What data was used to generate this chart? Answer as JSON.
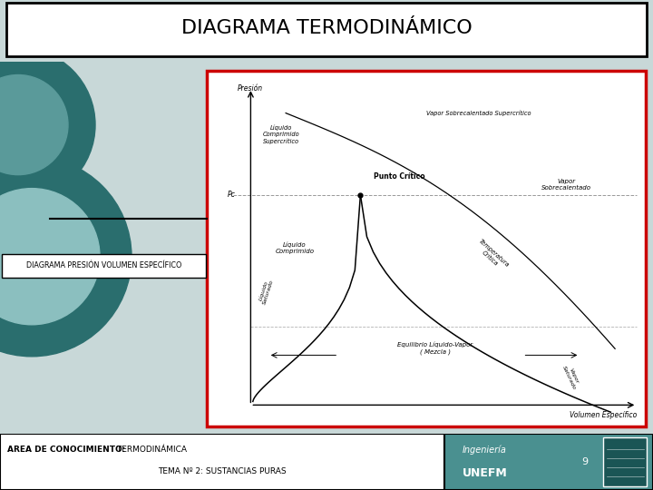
{
  "title": "DIAGRAMA TERMODINÁMICO",
  "subtitle_box": "DIAGRAMA PRESIÓN VOLUMEN ESPECÍFICO",
  "footer_left_bold": "AREA DE CONOCIMIENTO:",
  "footer_left_normal": " TERMODINÁMICA",
  "footer_center": "TEMA Nº 2: SUSTANCIAS PURAS",
  "footer_right_line1": "Ingeniería",
  "footer_right_line2": "UNEFM",
  "footer_page": "9",
  "bg_color": "#c8d8d8",
  "teal_dark": "#2a6e6e",
  "teal_mid": "#5a9a9a",
  "teal_light": "#8bbfbf",
  "red_border": "#cc0000",
  "footer_right_bg": "#4a9090"
}
